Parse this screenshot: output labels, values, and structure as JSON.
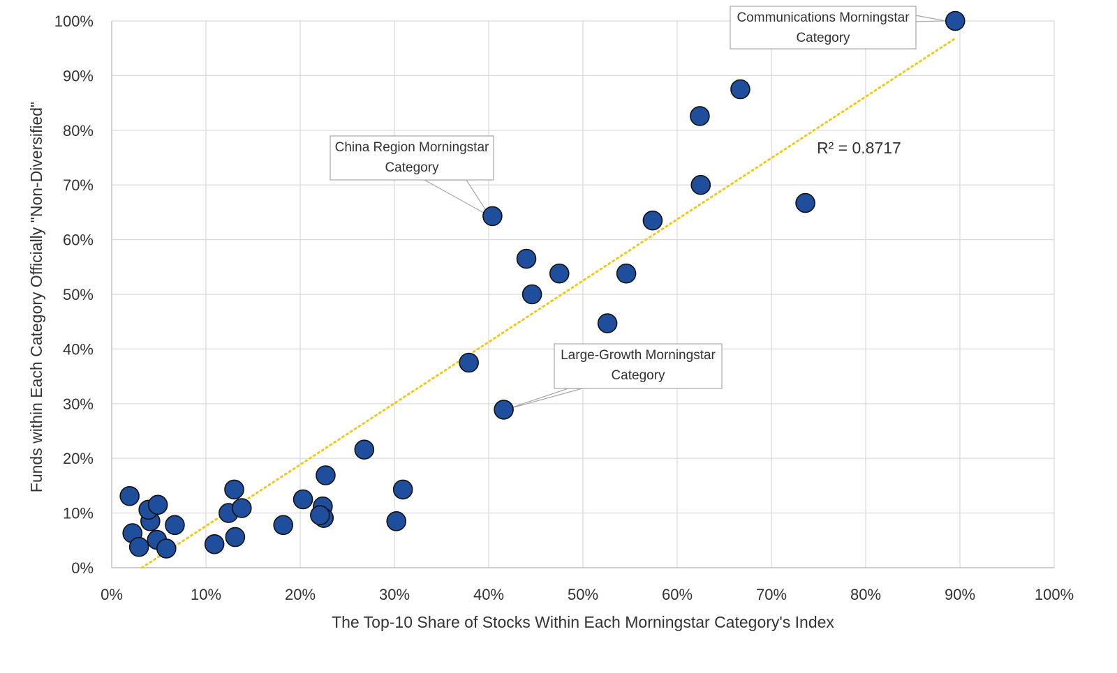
{
  "chart_data": {
    "type": "scatter",
    "title": "",
    "xlabel": "The Top-10 Share of Stocks Within Each Morningstar Category's Index",
    "ylabel": "Funds within Each Category Officially \"Non-Diversified\"",
    "xlim": [
      0,
      100
    ],
    "ylim": [
      0,
      100
    ],
    "x_ticks": [
      "0%",
      "10%",
      "20%",
      "30%",
      "40%",
      "50%",
      "60%",
      "70%",
      "80%",
      "90%",
      "100%"
    ],
    "y_ticks": [
      "0%",
      "10%",
      "20%",
      "30%",
      "40%",
      "50%",
      "60%",
      "70%",
      "80%",
      "90%",
      "100%"
    ],
    "grid": true,
    "point_color": "#1f4e9c",
    "trendline_color": "#f2c811",
    "trendline_style": "dotted",
    "trendline": {
      "x0": 3.2,
      "y0": 0,
      "x1": 89.5,
      "y1": 96.8
    },
    "r_squared_text": "R² = 0.8717",
    "points": [
      {
        "x": 1.9,
        "y": 13.1
      },
      {
        "x": 2.2,
        "y": 6.3
      },
      {
        "x": 2.9,
        "y": 3.8
      },
      {
        "x": 4.1,
        "y": 8.5
      },
      {
        "x": 3.9,
        "y": 10.6
      },
      {
        "x": 4.9,
        "y": 11.5
      },
      {
        "x": 4.8,
        "y": 5.1
      },
      {
        "x": 5.8,
        "y": 3.5
      },
      {
        "x": 6.7,
        "y": 7.8
      },
      {
        "x": 10.9,
        "y": 4.3
      },
      {
        "x": 12.4,
        "y": 10.0
      },
      {
        "x": 13.0,
        "y": 14.3
      },
      {
        "x": 13.8,
        "y": 10.9
      },
      {
        "x": 13.1,
        "y": 5.6
      },
      {
        "x": 18.2,
        "y": 7.8
      },
      {
        "x": 20.3,
        "y": 12.5
      },
      {
        "x": 22.7,
        "y": 16.9
      },
      {
        "x": 22.4,
        "y": 11.2
      },
      {
        "x": 22.5,
        "y": 9.1
      },
      {
        "x": 22.1,
        "y": 9.6
      },
      {
        "x": 26.8,
        "y": 21.6
      },
      {
        "x": 30.9,
        "y": 14.3
      },
      {
        "x": 30.2,
        "y": 8.5
      },
      {
        "x": 37.9,
        "y": 37.5
      },
      {
        "x": 40.4,
        "y": 64.3
      },
      {
        "x": 41.6,
        "y": 28.9
      },
      {
        "x": 44.0,
        "y": 56.5
      },
      {
        "x": 44.6,
        "y": 50.0
      },
      {
        "x": 47.5,
        "y": 53.8
      },
      {
        "x": 52.6,
        "y": 44.7
      },
      {
        "x": 54.6,
        "y": 53.8
      },
      {
        "x": 57.4,
        "y": 63.5
      },
      {
        "x": 62.4,
        "y": 82.6
      },
      {
        "x": 62.5,
        "y": 70.0
      },
      {
        "x": 66.7,
        "y": 87.5
      },
      {
        "x": 73.6,
        "y": 66.7
      },
      {
        "x": 89.5,
        "y": 100.0
      }
    ],
    "annotations": [
      {
        "lines": [
          "Communications Morningstar",
          "Category"
        ],
        "target": {
          "x": 89.5,
          "y": 100.0
        }
      },
      {
        "lines": [
          "China Region Morningstar",
          "Category"
        ],
        "target": {
          "x": 40.4,
          "y": 64.3
        }
      },
      {
        "lines": [
          "Large-Growth Morningstar",
          "Category"
        ],
        "target": {
          "x": 41.6,
          "y": 28.9
        }
      }
    ]
  }
}
